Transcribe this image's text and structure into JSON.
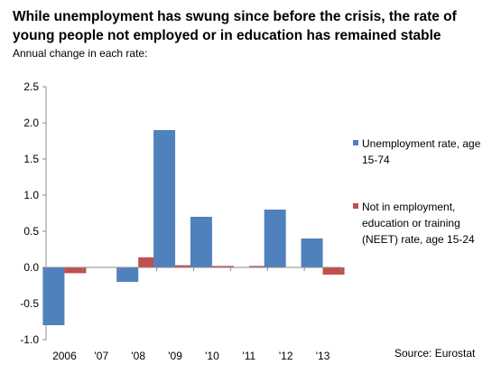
{
  "chart_data": {
    "type": "bar",
    "title": "While unemployment has swung since before the crisis, the rate of young people not employed or in education has remained stable",
    "subtitle": "Annual change in each rate:",
    "source": "Source: Eurostat",
    "categories": [
      "2006",
      "'07",
      "'08",
      "'09",
      "'10",
      "'11",
      "'12",
      "'13"
    ],
    "series": [
      {
        "name": "Unemployment rate, age 15-74",
        "color": "#4f81bd",
        "values": [
          -0.8,
          0.0,
          -0.2,
          1.9,
          0.7,
          0.0,
          0.8,
          0.4
        ]
      },
      {
        "name": "Not in employment, education or training (NEET) rate, age 15-24",
        "color": "#c0504d",
        "values": [
          -0.08,
          0.0,
          0.14,
          0.03,
          0.02,
          0.02,
          0.0,
          -0.1
        ]
      }
    ],
    "yticks": [
      "2.5",
      "2.0",
      "1.5",
      "1.0",
      "0.5",
      "0.0",
      "-0.5",
      "-1.0"
    ],
    "ylim": [
      -1.0,
      2.5
    ],
    "grid": false,
    "legend": "right"
  }
}
